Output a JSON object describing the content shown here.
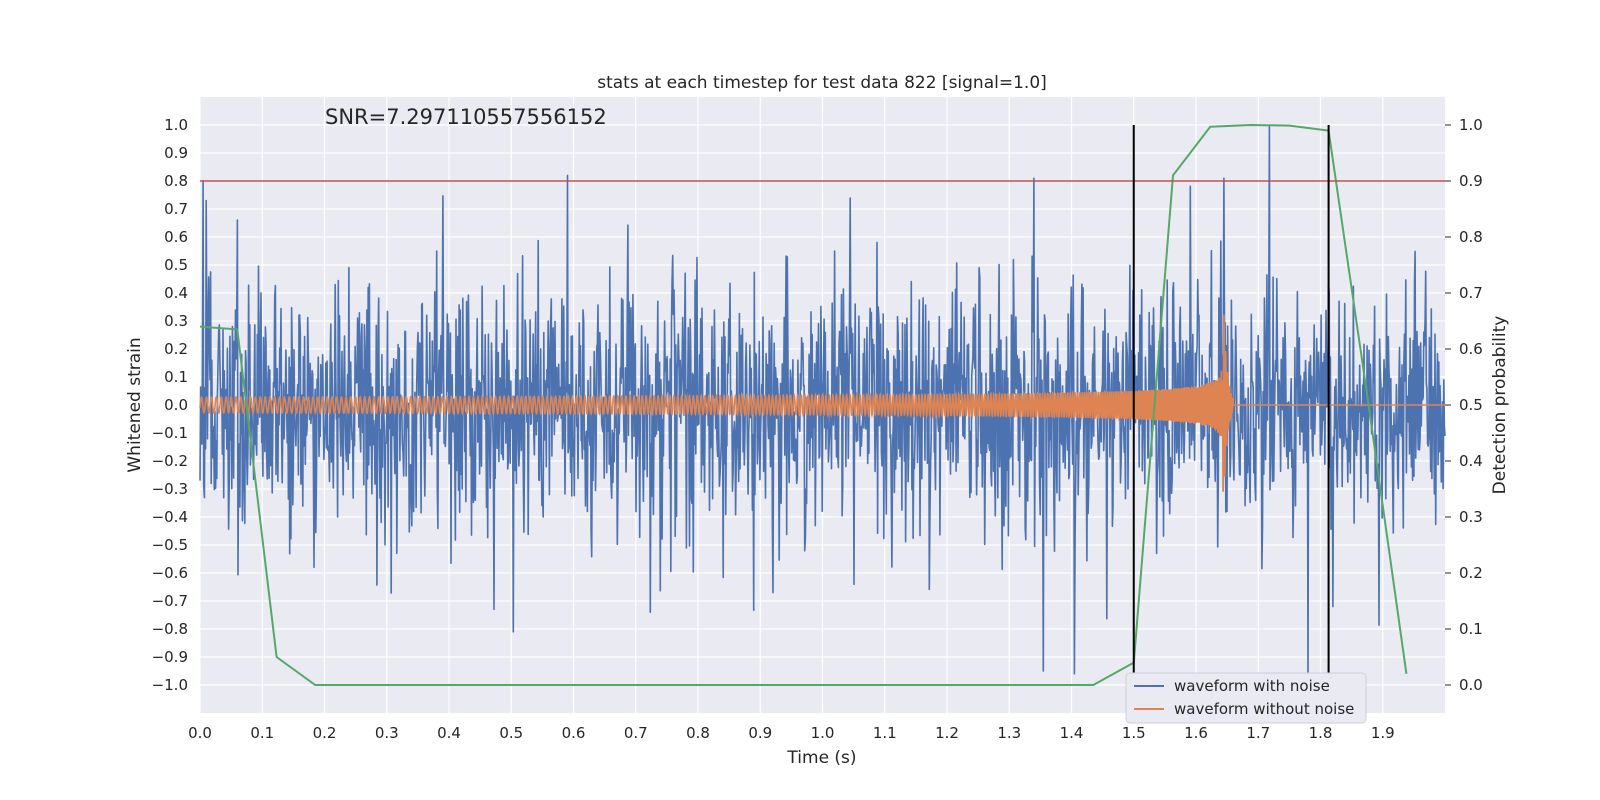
{
  "chart_data": {
    "type": "line",
    "title": "stats at each timestep for test data 822 [signal=1.0]",
    "xlabel": "Time (s)",
    "ylabel": "Whitened strain",
    "y2label": "Detection probability",
    "annotation": "SNR=7.297110557556152",
    "xlim": [
      0.0,
      2.0
    ],
    "ylim": [
      -1.1,
      1.1
    ],
    "y2lim": [
      -0.05,
      1.05
    ],
    "xticks": [
      "0.0",
      "0.1",
      "0.2",
      "0.3",
      "0.4",
      "0.5",
      "0.6",
      "0.7",
      "0.8",
      "0.9",
      "1.0",
      "1.1",
      "1.2",
      "1.3",
      "1.4",
      "1.5",
      "1.6",
      "1.7",
      "1.8",
      "1.9"
    ],
    "yticks": [
      "1.0",
      "0.9",
      "0.8",
      "0.7",
      "0.6",
      "0.5",
      "0.4",
      "0.3",
      "0.2",
      "0.1",
      "0.0",
      "−0.1",
      "−0.2",
      "−0.3",
      "−0.4",
      "−0.5",
      "−0.6",
      "−0.7",
      "−0.8",
      "−0.9",
      "−1.0"
    ],
    "y2ticks": [
      "1.0",
      "0.9",
      "0.8",
      "0.7",
      "0.6",
      "0.5",
      "0.4",
      "0.3",
      "0.2",
      "0.1",
      "0.0"
    ],
    "grid": true,
    "legend_position": "lower-right",
    "threshold": {
      "value": 0.8,
      "color": "#c44e52"
    },
    "vertical_markers": {
      "x": [
        1.5,
        1.813
      ],
      "ymin": -1.0,
      "ymax": 1.0,
      "color": "#000000"
    },
    "series": [
      {
        "name": "waveform with noise",
        "color": "#4c72b0",
        "axis": "left",
        "kind": "noise",
        "x_range": [
          0.0,
          2.0
        ],
        "n_points": 2000,
        "amplitude": 0.3,
        "notable_peaks": [
          {
            "x": 0.01,
            "y": 0.73
          },
          {
            "x": 0.59,
            "y": 0.82
          },
          {
            "x": 1.34,
            "y": 0.81
          },
          {
            "x": 1.645,
            "y": 0.81
          },
          {
            "x": 1.718,
            "y": 1.0
          },
          {
            "x": 0.503,
            "y": -0.81
          },
          {
            "x": 0.723,
            "y": -0.74
          },
          {
            "x": 1.405,
            "y": -0.96
          },
          {
            "x": 1.78,
            "y": -0.99
          },
          {
            "x": 0.92,
            "y": -0.67
          },
          {
            "x": 1.82,
            "y": -0.72
          }
        ]
      },
      {
        "name": "waveform without noise",
        "color": "#dd8452",
        "axis": "left",
        "kind": "chirp",
        "x_range": [
          0.0,
          1.66
        ],
        "merger_x": 1.645,
        "peak_amplitude": 0.33
      },
      {
        "name": "",
        "color": "#55a868",
        "axis": "right",
        "kind": "probability",
        "x": [
          0.0,
          0.06,
          0.123,
          0.185,
          0.245,
          0.31,
          0.37,
          0.43,
          0.49,
          0.555,
          0.615,
          0.68,
          0.74,
          0.8,
          0.86,
          0.92,
          0.985,
          1.045,
          1.105,
          1.165,
          1.23,
          1.29,
          1.35,
          1.41,
          1.435,
          1.5,
          1.563,
          1.623,
          1.688,
          1.75,
          1.813,
          1.876,
          1.938
        ],
        "y": [
          0.64,
          0.635,
          0.05,
          0.0,
          0.0,
          0.0,
          0.0,
          0.0,
          0.0,
          0.0,
          0.0,
          0.0,
          0.0,
          0.0,
          0.0,
          0.0,
          0.0,
          0.0,
          0.0,
          0.0,
          0.0,
          0.0,
          0.0,
          0.0,
          0.0,
          0.04,
          0.91,
          0.997,
          1.0,
          0.999,
          0.99,
          0.51,
          0.02
        ]
      }
    ]
  }
}
